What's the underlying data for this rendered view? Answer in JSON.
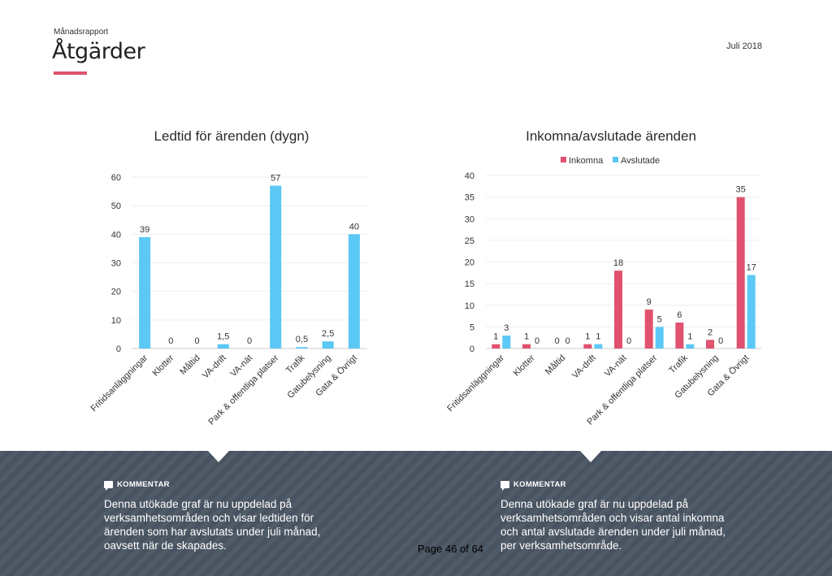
{
  "header": {
    "supertitle": "Månadsrapport",
    "title": "Åtgärder",
    "date": "Juli 2018",
    "accent_color": "#e0526f"
  },
  "chart_data": [
    {
      "type": "bar",
      "title": "Ledtid för ärenden (dygn)",
      "categories": [
        "Fritidsanläggningar",
        "Klotter",
        "Måltid",
        "VA-drift",
        "VA-nät",
        "Park & offentliga platser",
        "Trafik",
        "Gatubelysning",
        "Gata & Övrigt"
      ],
      "series": [
        {
          "values": [
            39,
            0,
            0,
            1.5,
            0,
            57,
            0.5,
            2.5,
            40
          ],
          "color": "#5bc8f5"
        }
      ],
      "data_labels": [
        "39",
        "0",
        "0",
        "1,5",
        "0",
        "57",
        "0,5",
        "2,5",
        "40"
      ],
      "yticks": [
        0,
        10,
        20,
        30,
        40,
        50,
        60
      ],
      "ylim": [
        0,
        60
      ],
      "grid": true,
      "legend": "none"
    },
    {
      "type": "bar",
      "title": "Inkomna/avslutade ärenden",
      "categories": [
        "Fritidsanläggningar",
        "Klotter",
        "Måltid",
        "VA-drift",
        "VA-nät",
        "Park & offentliga platser",
        "Trafik",
        "Gatubelysning",
        "Gata & Övrigt"
      ],
      "series": [
        {
          "name": "Inkomna",
          "values": [
            1,
            1,
            0,
            1,
            18,
            9,
            6,
            2,
            35
          ],
          "color": "#e0526f"
        },
        {
          "name": "Avslutade",
          "values": [
            3,
            0,
            0,
            1,
            0,
            5,
            1,
            0,
            17
          ],
          "color": "#5bc8f5"
        }
      ],
      "yticks": [
        0,
        5,
        10,
        15,
        20,
        25,
        30,
        35,
        40
      ],
      "ylim": [
        0,
        40
      ],
      "grid": true,
      "legend": "top-center"
    }
  ],
  "comments": [
    {
      "heading": "KOMMENTAR",
      "text": "Denna utökade graf är nu uppdelad på verksamhetsområden och visar ledtiden för ärenden som har avslutats under juli månad, oavsett när de skapades."
    },
    {
      "heading": "KOMMENTAR",
      "text": "Denna utökade graf är nu uppdelad på verksamhetsområden och visar antal inkomna och antal avslutade ärenden under juli månad, per verksamhetsområde."
    }
  ],
  "footer": {
    "page_number": "Page 46 of 64",
    "background_color": "#4a5563"
  }
}
